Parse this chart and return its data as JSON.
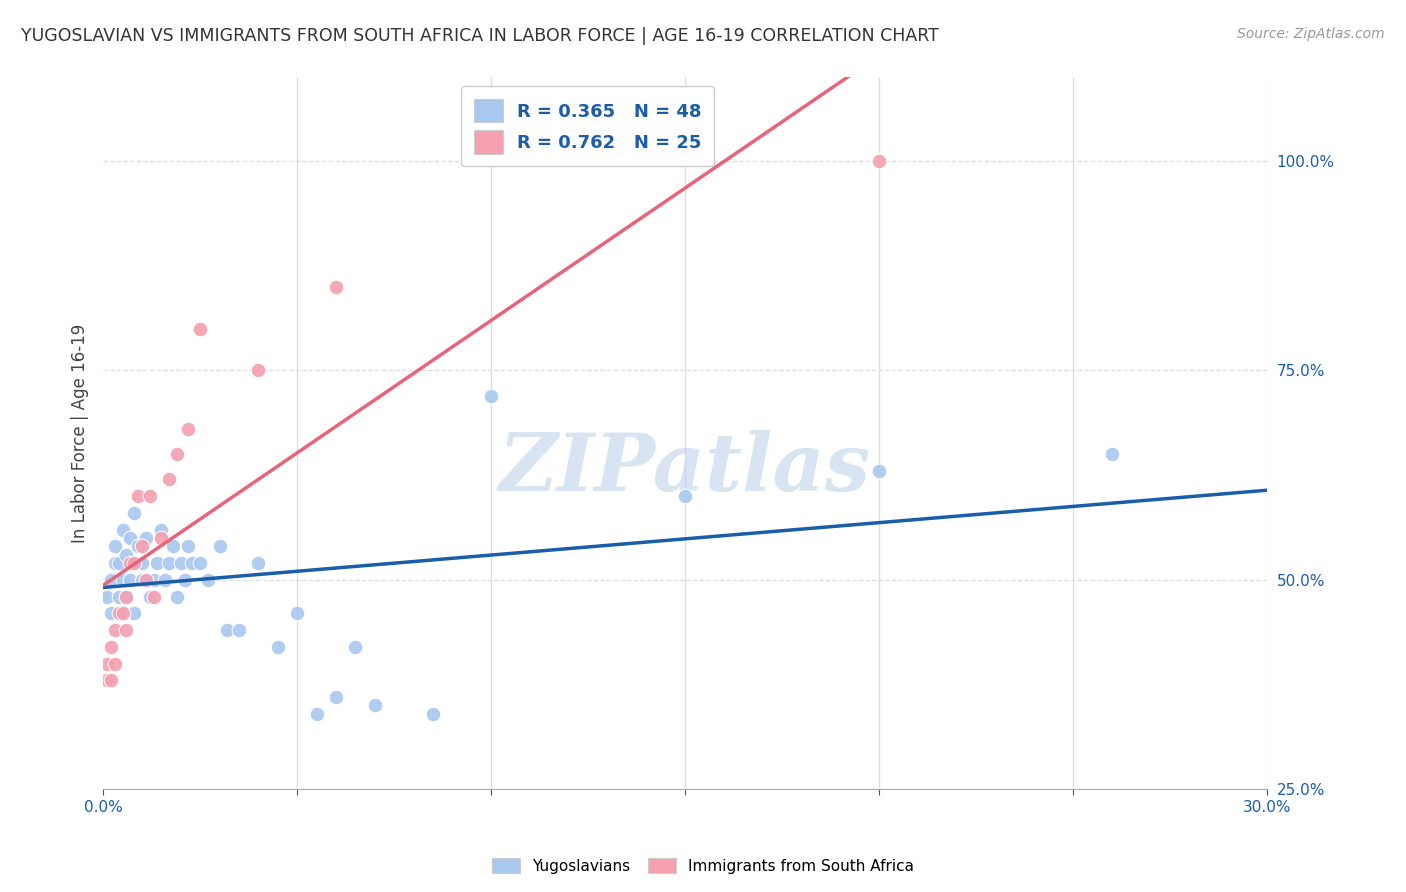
{
  "title": "YUGOSLAVIAN VS IMMIGRANTS FROM SOUTH AFRICA IN LABOR FORCE | AGE 16-19 CORRELATION CHART",
  "source": "Source: ZipAtlas.com",
  "ylabel": "In Labor Force | Age 16-19",
  "xlim": [
    0.0,
    0.3
  ],
  "ylim": [
    0.3,
    1.1
  ],
  "xticks": [
    0.0,
    0.05,
    0.1,
    0.15,
    0.2,
    0.25,
    0.3
  ],
  "xticklabels": [
    "0.0%",
    "",
    "",
    "",
    "",
    "",
    "30.0%"
  ],
  "ytick_positions": [
    0.25,
    0.5,
    0.75,
    1.0
  ],
  "ytick_labels": [
    "25.0%",
    "50.0%",
    "75.0%",
    "100.0%"
  ],
  "blue_color": "#A8C8F0",
  "blue_line_color": "#1A5DAB",
  "pink_color": "#F4A0B0",
  "pink_line_color": "#E8647A",
  "blue_R": 0.365,
  "blue_N": 48,
  "pink_R": 0.762,
  "pink_N": 25,
  "legend_text_color": "#1A5DAB",
  "yugoslavians_x": [
    0.001,
    0.002,
    0.002,
    0.003,
    0.003,
    0.004,
    0.004,
    0.005,
    0.005,
    0.006,
    0.006,
    0.007,
    0.007,
    0.008,
    0.008,
    0.009,
    0.01,
    0.01,
    0.011,
    0.012,
    0.013,
    0.014,
    0.015,
    0.016,
    0.017,
    0.018,
    0.019,
    0.02,
    0.021,
    0.022,
    0.023,
    0.025,
    0.027,
    0.03,
    0.032,
    0.035,
    0.04,
    0.045,
    0.05,
    0.055,
    0.06,
    0.065,
    0.07,
    0.085,
    0.1,
    0.15,
    0.2,
    0.26
  ],
  "yugoslavians_y": [
    0.48,
    0.46,
    0.5,
    0.52,
    0.54,
    0.48,
    0.52,
    0.5,
    0.56,
    0.53,
    0.48,
    0.55,
    0.5,
    0.58,
    0.46,
    0.54,
    0.5,
    0.52,
    0.55,
    0.48,
    0.5,
    0.52,
    0.56,
    0.5,
    0.52,
    0.54,
    0.48,
    0.52,
    0.5,
    0.54,
    0.52,
    0.52,
    0.5,
    0.54,
    0.44,
    0.44,
    0.52,
    0.42,
    0.46,
    0.34,
    0.36,
    0.42,
    0.35,
    0.34,
    0.72,
    0.6,
    0.63,
    0.65
  ],
  "south_africa_x": [
    0.001,
    0.001,
    0.002,
    0.002,
    0.003,
    0.003,
    0.004,
    0.005,
    0.006,
    0.006,
    0.007,
    0.008,
    0.009,
    0.01,
    0.011,
    0.012,
    0.013,
    0.015,
    0.017,
    0.019,
    0.022,
    0.025,
    0.04,
    0.06,
    0.2
  ],
  "south_africa_y": [
    0.38,
    0.4,
    0.42,
    0.38,
    0.44,
    0.4,
    0.46,
    0.46,
    0.44,
    0.48,
    0.52,
    0.52,
    0.6,
    0.54,
    0.5,
    0.6,
    0.48,
    0.55,
    0.62,
    0.65,
    0.68,
    0.8,
    0.75,
    0.85,
    1.0
  ],
  "watermark": "ZIPatlas",
  "background_color": "#FFFFFF",
  "grid_color": "#DDDDDD",
  "grid_h_style": "--",
  "grid_v_style": "-"
}
